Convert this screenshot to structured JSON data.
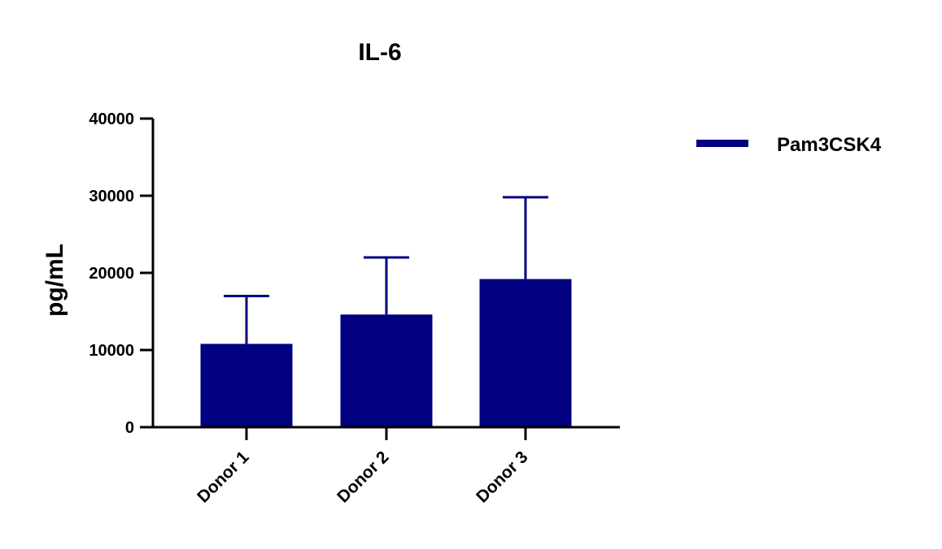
{
  "chart_data": {
    "type": "bar",
    "title": "IL-6",
    "xlabel": "",
    "ylabel": "pg/mL",
    "categories": [
      "Donor 1",
      "Donor 2",
      "Donor 3"
    ],
    "series": [
      {
        "name": "Pam3CSK4",
        "values": [
          10800,
          14600,
          19200
        ],
        "error_upper": [
          17000,
          22000,
          29800
        ],
        "color": "#000080"
      }
    ],
    "ylim": [
      0,
      40000
    ],
    "yticks": [
      "0",
      "10000",
      "20000",
      "30000",
      "40000"
    ],
    "grid": false,
    "legend_position": "top-right",
    "colors": {
      "bar": "#000080",
      "axis": "#000000"
    }
  }
}
